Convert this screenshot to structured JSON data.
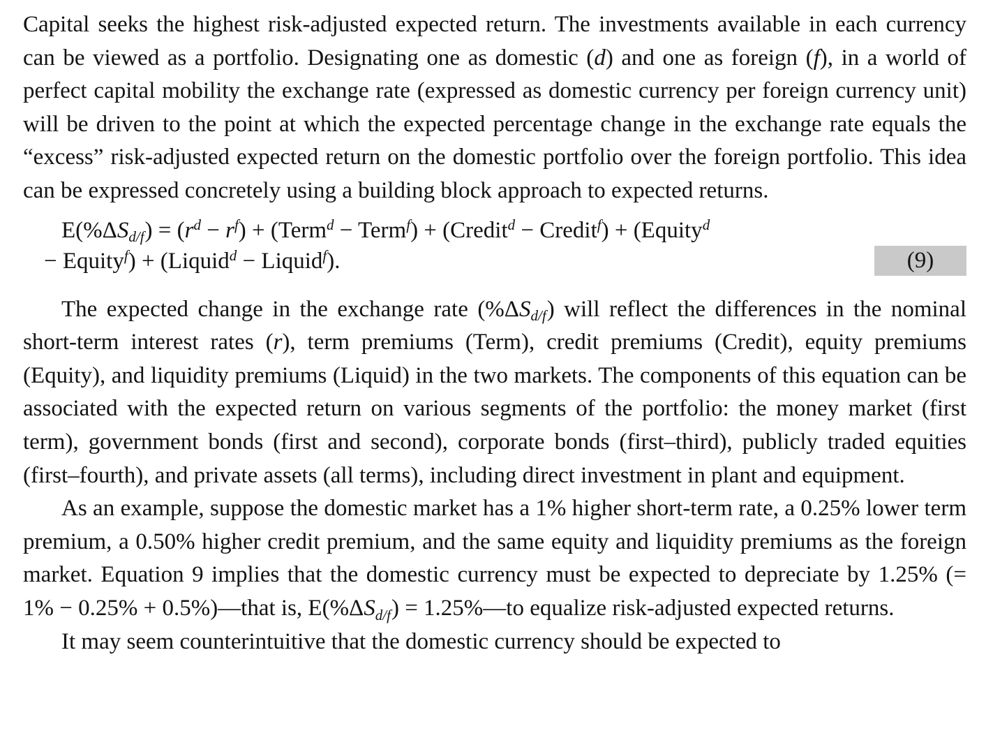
{
  "page": {
    "background": "#ffffff",
    "text_color": "#131313"
  },
  "equation": {
    "number": "(9)",
    "highlight_color": "#c9c9c9",
    "line1_tokens": [
      {
        "s": "n",
        "v": "E(%Δ"
      },
      {
        "s": "i",
        "v": "S"
      },
      {
        "s": "sub",
        "v": "d/f"
      },
      {
        "s": "n",
        "v": ") = ("
      },
      {
        "s": "i",
        "v": "r"
      },
      {
        "s": "sup",
        "v": "d"
      },
      {
        "s": "n",
        "v": " − "
      },
      {
        "s": "i",
        "v": "r"
      },
      {
        "s": "sup",
        "v": "f"
      },
      {
        "s": "n",
        "v": ") + (Term"
      },
      {
        "s": "sup",
        "v": "d"
      },
      {
        "s": "n",
        "v": " − Term"
      },
      {
        "s": "sup",
        "v": "f"
      },
      {
        "s": "n",
        "v": ") + (Credit"
      },
      {
        "s": "sup",
        "v": "d"
      },
      {
        "s": "n",
        "v": " − Credit"
      },
      {
        "s": "sup",
        "v": "f"
      },
      {
        "s": "n",
        "v": ") + (Equity"
      },
      {
        "s": "sup",
        "v": "d"
      }
    ],
    "line2_tokens": [
      {
        "s": "n",
        "v": "− Equity"
      },
      {
        "s": "sup",
        "v": "f"
      },
      {
        "s": "n",
        "v": ") + (Liquid"
      },
      {
        "s": "sup",
        "v": "d"
      },
      {
        "s": "n",
        "v": " − Liquid"
      },
      {
        "s": "sup",
        "v": "f"
      },
      {
        "s": "n",
        "v": ")."
      }
    ]
  },
  "paragraphs": [
    {
      "tokens": [
        {
          "s": "n",
          "v": "Capital seeks the highest risk-adjusted expected return. The investments available in each currency can be viewed as a portfolio. Designating one as domestic ("
        },
        {
          "s": "i",
          "v": "d"
        },
        {
          "s": "n",
          "v": ") and one as foreign ("
        },
        {
          "s": "i",
          "v": "f"
        },
        {
          "s": "n",
          "v": "), in a world of perfect capital mobility the exchange rate (expressed as domestic currency per foreign currency unit) will be driven to the point at which the expected percentage change in the exchange rate equals the “excess” risk-adjusted expected return on the domestic portfolio over the foreign portfolio. This idea can be expressed concretely using a building block approach to expected returns."
        }
      ]
    },
    {
      "tokens": [
        {
          "s": "n",
          "v": "The expected change in the exchange rate (%Δ"
        },
        {
          "s": "i",
          "v": "S"
        },
        {
          "s": "sub",
          "v": "d/f"
        },
        {
          "s": "n",
          "v": ") will reflect the differences in the nominal short-term interest rates ("
        },
        {
          "s": "i",
          "v": "r"
        },
        {
          "s": "n",
          "v": "), term premiums (Term), credit premiums (Credit), equity premiums (Equity), and liquidity premiums (Liquid) in the two markets. The components of this equation can be associated with the expected return on various segments of the portfolio: the money market (first term), government bonds (first and second), corporate bonds (first–third), publicly traded equities (first–fourth), and private assets (all terms), including direct investment in plant and equipment."
        }
      ]
    },
    {
      "tokens": [
        {
          "s": "n",
          "v": "As an example, suppose the domestic market has a 1% higher short-term rate, a 0.25% lower term premium, a 0.50% higher credit premium, and the same equity and liquidity premiums as the foreign market. Equation 9 implies that the domestic currency must be expected to depreciate by 1.25% (= 1% − 0.25% + 0.5%)—that is, E(%Δ"
        },
        {
          "s": "i",
          "v": "S"
        },
        {
          "s": "sub",
          "v": "d/f"
        },
        {
          "s": "n",
          "v": ") = 1.25%—to equalize risk-adjusted expected returns."
        }
      ]
    },
    {
      "tokens": [
        {
          "s": "n",
          "v": "It may seem counterintuitive that the domestic currency should be expected to"
        }
      ]
    }
  ]
}
